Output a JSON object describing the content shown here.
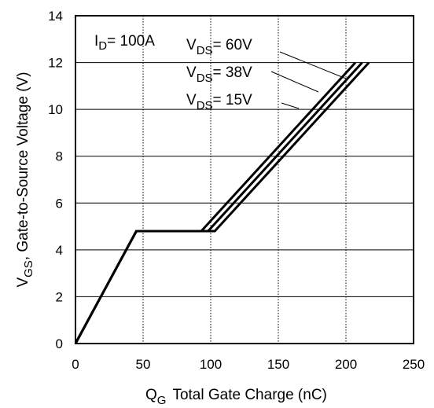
{
  "chart_data": {
    "type": "line",
    "xlabel": {
      "main": "Q",
      "sub": "G",
      "rest": "Total Gate Charge (nC)"
    },
    "ylabel": {
      "main": "V",
      "sub": "GS",
      "rest": ", Gate-to-Source Voltage (V)"
    },
    "xlim": [
      0,
      250
    ],
    "ylim": [
      0,
      14
    ],
    "xticks": [
      0,
      50,
      100,
      150,
      200,
      250
    ],
    "yticks": [
      0,
      2,
      4,
      6,
      8,
      10,
      12,
      14
    ],
    "grid": true,
    "condition": {
      "main": "I",
      "sub": "D",
      "rest": "= 100A"
    },
    "series": [
      {
        "name": "V_DS = 60V",
        "label": {
          "main": "V",
          "sub": "DS",
          "rest": "= 60V"
        },
        "x": [
          0,
          45,
          93,
          207
        ],
        "y": [
          0,
          4.8,
          4.8,
          12.0
        ]
      },
      {
        "name": "V_DS = 38V",
        "label": {
          "main": "V",
          "sub": "DS",
          "rest": "= 38V"
        },
        "x": [
          0,
          45,
          98,
          212
        ],
        "y": [
          0,
          4.8,
          4.8,
          12.0
        ]
      },
      {
        "name": "V_DS = 15V",
        "label": {
          "main": "V",
          "sub": "DS",
          "rest": "= 15V"
        },
        "x": [
          0,
          45,
          103,
          217
        ],
        "y": [
          0,
          4.8,
          4.8,
          12.0
        ]
      }
    ],
    "colors": {
      "line": "#000000",
      "grid": "#000000",
      "background": "#ffffff"
    }
  }
}
